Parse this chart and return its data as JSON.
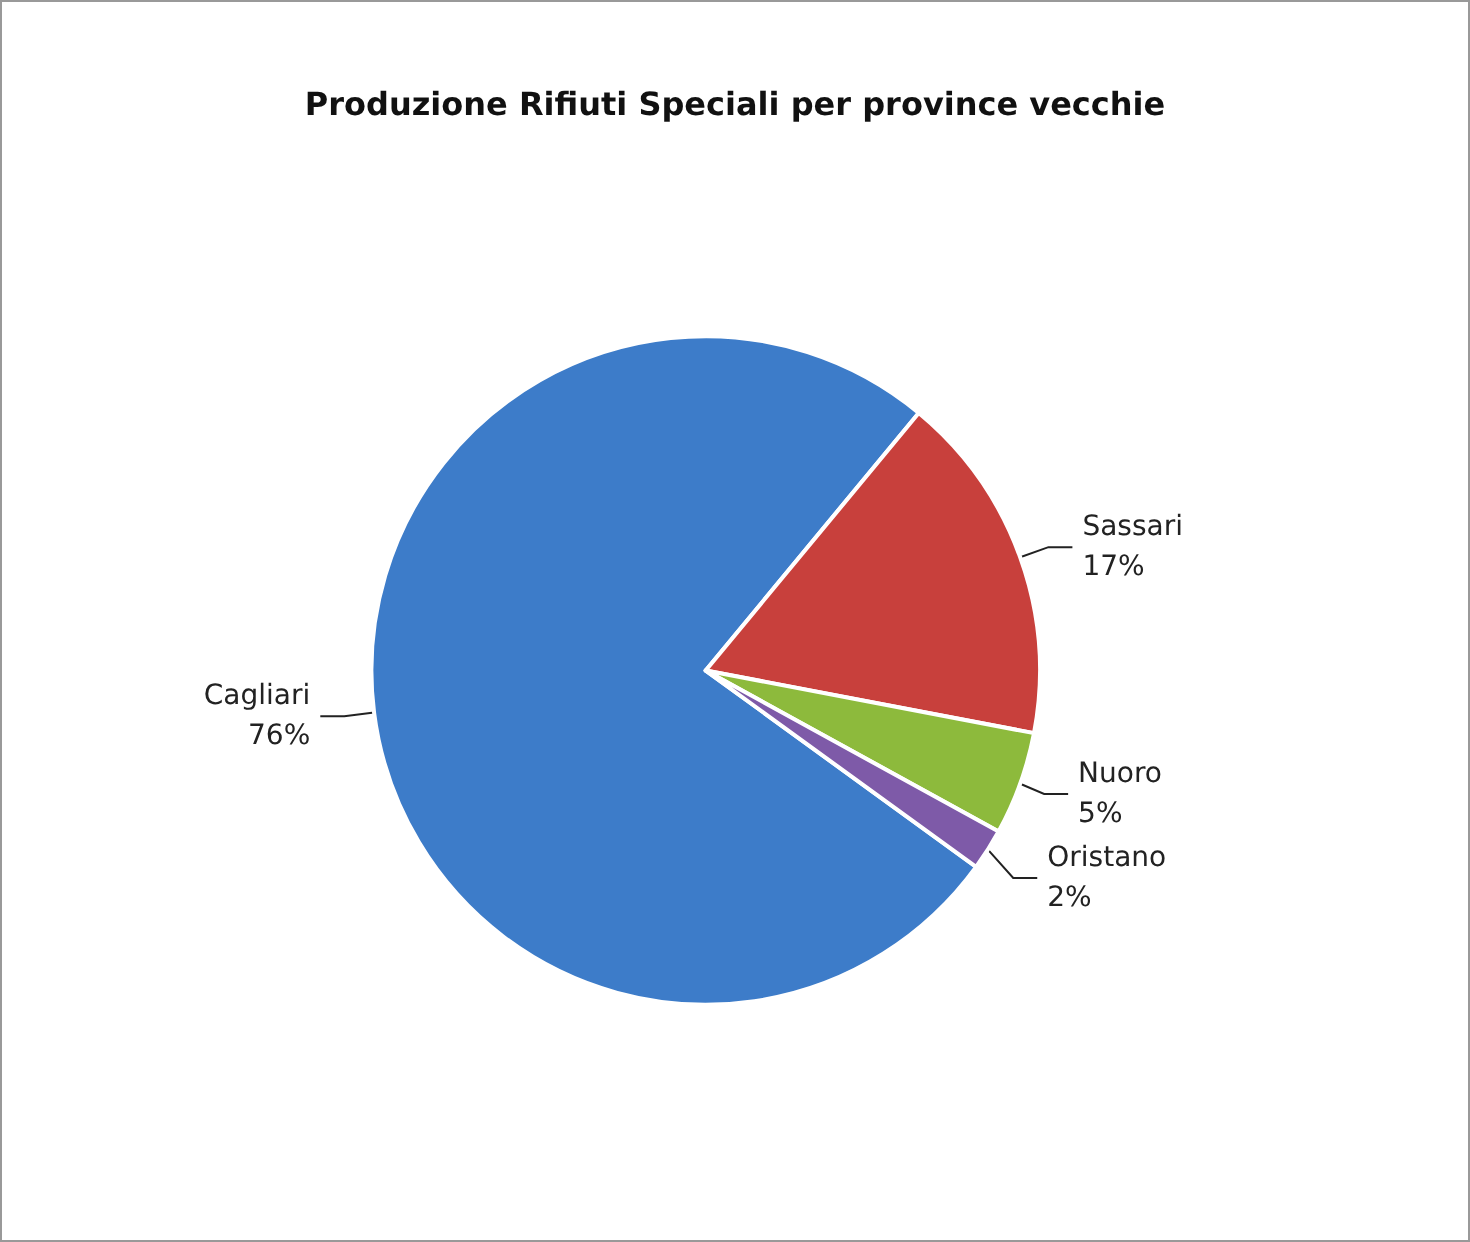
{
  "chart_data": {
    "type": "pie",
    "title": "Produzione Rifiuti Speciali per province vecchie",
    "categories": [
      "Cagliari",
      "Sassari",
      "Nuoro",
      "Oristano"
    ],
    "values": [
      76,
      17,
      5,
      2
    ],
    "value_labels": [
      "76%",
      "17%",
      "5%",
      "2%"
    ],
    "colors": [
      "#3d7cc9",
      "#c8403c",
      "#8dba3c",
      "#7e5aa8"
    ],
    "legend": false
  }
}
